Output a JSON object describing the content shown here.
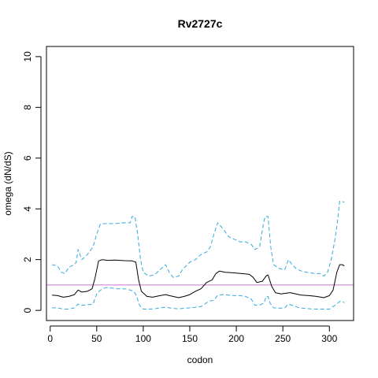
{
  "chart_data": {
    "type": "line",
    "title": "Rv2727c",
    "xlabel": "codon",
    "ylabel": "omega (dN/dS)",
    "xlim": [
      -4,
      326
    ],
    "ylim": [
      -0.4,
      10.4
    ],
    "x_ticks": [
      0,
      50,
      100,
      150,
      200,
      250,
      300
    ],
    "x_tick_labels": [
      "0",
      "50",
      "100",
      "150",
      "200",
      "250",
      "300"
    ],
    "y_ticks": [
      0,
      2,
      4,
      6,
      8,
      10
    ],
    "y_tick_labels": [
      "0",
      "2",
      "4",
      "6",
      "8",
      "10"
    ],
    "reference_line": {
      "y": 1,
      "color": "#cc77cc"
    },
    "grid": false,
    "series": [
      {
        "role": "estimate",
        "color": "#000000",
        "style": "solid",
        "points": [
          [
            2,
            0.6
          ],
          [
            8,
            0.58
          ],
          [
            14,
            0.52
          ],
          [
            20,
            0.55
          ],
          [
            26,
            0.62
          ],
          [
            30,
            0.8
          ],
          [
            34,
            0.72
          ],
          [
            40,
            0.75
          ],
          [
            45,
            0.85
          ],
          [
            48,
            1.25
          ],
          [
            52,
            1.95
          ],
          [
            56,
            2.0
          ],
          [
            62,
            1.97
          ],
          [
            70,
            1.98
          ],
          [
            80,
            1.96
          ],
          [
            88,
            1.95
          ],
          [
            92,
            1.9
          ],
          [
            95,
            1.2
          ],
          [
            98,
            0.75
          ],
          [
            104,
            0.55
          ],
          [
            110,
            0.52
          ],
          [
            118,
            0.58
          ],
          [
            124,
            0.62
          ],
          [
            128,
            0.58
          ],
          [
            132,
            0.55
          ],
          [
            138,
            0.5
          ],
          [
            144,
            0.55
          ],
          [
            150,
            0.62
          ],
          [
            156,
            0.75
          ],
          [
            162,
            0.85
          ],
          [
            168,
            1.1
          ],
          [
            174,
            1.2
          ],
          [
            178,
            1.45
          ],
          [
            182,
            1.55
          ],
          [
            188,
            1.5
          ],
          [
            196,
            1.48
          ],
          [
            206,
            1.45
          ],
          [
            214,
            1.42
          ],
          [
            218,
            1.3
          ],
          [
            222,
            1.1
          ],
          [
            228,
            1.15
          ],
          [
            232,
            1.35
          ],
          [
            234,
            1.4
          ],
          [
            238,
            0.95
          ],
          [
            242,
            0.7
          ],
          [
            248,
            0.65
          ],
          [
            254,
            0.68
          ],
          [
            258,
            0.7
          ],
          [
            264,
            0.65
          ],
          [
            270,
            0.6
          ],
          [
            278,
            0.58
          ],
          [
            286,
            0.55
          ],
          [
            294,
            0.5
          ],
          [
            300,
            0.58
          ],
          [
            304,
            0.8
          ],
          [
            308,
            1.5
          ],
          [
            311,
            1.8
          ],
          [
            314,
            1.8
          ],
          [
            316,
            1.75
          ]
        ]
      },
      {
        "role": "upper",
        "color": "#33aadd",
        "style": "dashed",
        "points": [
          [
            2,
            1.8
          ],
          [
            8,
            1.75
          ],
          [
            12,
            1.5
          ],
          [
            16,
            1.45
          ],
          [
            20,
            1.7
          ],
          [
            26,
            1.8
          ],
          [
            28,
            1.9
          ],
          [
            30,
            2.4
          ],
          [
            34,
            2.0
          ],
          [
            40,
            2.2
          ],
          [
            46,
            2.5
          ],
          [
            50,
            3.0
          ],
          [
            54,
            3.4
          ],
          [
            60,
            3.42
          ],
          [
            70,
            3.42
          ],
          [
            80,
            3.45
          ],
          [
            86,
            3.45
          ],
          [
            88,
            3.7
          ],
          [
            91,
            3.7
          ],
          [
            94,
            3.0
          ],
          [
            97,
            2.0
          ],
          [
            100,
            1.5
          ],
          [
            106,
            1.35
          ],
          [
            112,
            1.4
          ],
          [
            118,
            1.6
          ],
          [
            124,
            1.8
          ],
          [
            128,
            1.5
          ],
          [
            132,
            1.3
          ],
          [
            138,
            1.35
          ],
          [
            142,
            1.6
          ],
          [
            150,
            1.9
          ],
          [
            156,
            2.0
          ],
          [
            162,
            2.2
          ],
          [
            168,
            2.3
          ],
          [
            172,
            2.5
          ],
          [
            176,
            3.0
          ],
          [
            180,
            3.45
          ],
          [
            186,
            3.2
          ],
          [
            192,
            2.9
          ],
          [
            198,
            2.8
          ],
          [
            204,
            2.7
          ],
          [
            210,
            2.7
          ],
          [
            216,
            2.6
          ],
          [
            220,
            2.4
          ],
          [
            225,
            2.5
          ],
          [
            229,
            3.4
          ],
          [
            231,
            3.7
          ],
          [
            234,
            3.7
          ],
          [
            237,
            2.5
          ],
          [
            240,
            1.8
          ],
          [
            246,
            1.65
          ],
          [
            252,
            1.6
          ],
          [
            256,
            2.0
          ],
          [
            260,
            1.8
          ],
          [
            264,
            1.65
          ],
          [
            270,
            1.55
          ],
          [
            276,
            1.5
          ],
          [
            284,
            1.45
          ],
          [
            290,
            1.45
          ],
          [
            294,
            1.35
          ],
          [
            298,
            1.5
          ],
          [
            302,
            2.0
          ],
          [
            306,
            2.8
          ],
          [
            309,
            3.6
          ],
          [
            311,
            4.3
          ],
          [
            314,
            4.3
          ],
          [
            316,
            4.25
          ]
        ]
      },
      {
        "role": "lower",
        "color": "#33aadd",
        "style": "dashed",
        "points": [
          [
            2,
            0.1
          ],
          [
            8,
            0.1
          ],
          [
            14,
            0.05
          ],
          [
            20,
            0.05
          ],
          [
            26,
            0.1
          ],
          [
            30,
            0.25
          ],
          [
            34,
            0.2
          ],
          [
            40,
            0.22
          ],
          [
            46,
            0.25
          ],
          [
            50,
            0.65
          ],
          [
            54,
            0.8
          ],
          [
            60,
            0.9
          ],
          [
            66,
            0.88
          ],
          [
            72,
            0.85
          ],
          [
            80,
            0.85
          ],
          [
            86,
            0.8
          ],
          [
            90,
            0.75
          ],
          [
            93,
            0.55
          ],
          [
            96,
            0.2
          ],
          [
            100,
            0.05
          ],
          [
            106,
            0.05
          ],
          [
            112,
            0.06
          ],
          [
            118,
            0.1
          ],
          [
            124,
            0.12
          ],
          [
            128,
            0.1
          ],
          [
            132,
            0.08
          ],
          [
            138,
            0.06
          ],
          [
            144,
            0.08
          ],
          [
            150,
            0.1
          ],
          [
            156,
            0.12
          ],
          [
            162,
            0.15
          ],
          [
            166,
            0.25
          ],
          [
            170,
            0.35
          ],
          [
            176,
            0.4
          ],
          [
            180,
            0.6
          ],
          [
            186,
            0.62
          ],
          [
            192,
            0.6
          ],
          [
            198,
            0.58
          ],
          [
            204,
            0.58
          ],
          [
            210,
            0.55
          ],
          [
            216,
            0.45
          ],
          [
            220,
            0.2
          ],
          [
            226,
            0.22
          ],
          [
            230,
            0.3
          ],
          [
            232,
            0.55
          ],
          [
            234,
            0.55
          ],
          [
            236,
            0.3
          ],
          [
            240,
            0.1
          ],
          [
            246,
            0.08
          ],
          [
            252,
            0.1
          ],
          [
            256,
            0.25
          ],
          [
            260,
            0.2
          ],
          [
            266,
            0.12
          ],
          [
            272,
            0.08
          ],
          [
            280,
            0.06
          ],
          [
            288,
            0.05
          ],
          [
            294,
            0.05
          ],
          [
            300,
            0.05
          ],
          [
            304,
            0.15
          ],
          [
            308,
            0.25
          ],
          [
            311,
            0.35
          ],
          [
            314,
            0.35
          ],
          [
            316,
            0.3
          ]
        ]
      }
    ]
  }
}
